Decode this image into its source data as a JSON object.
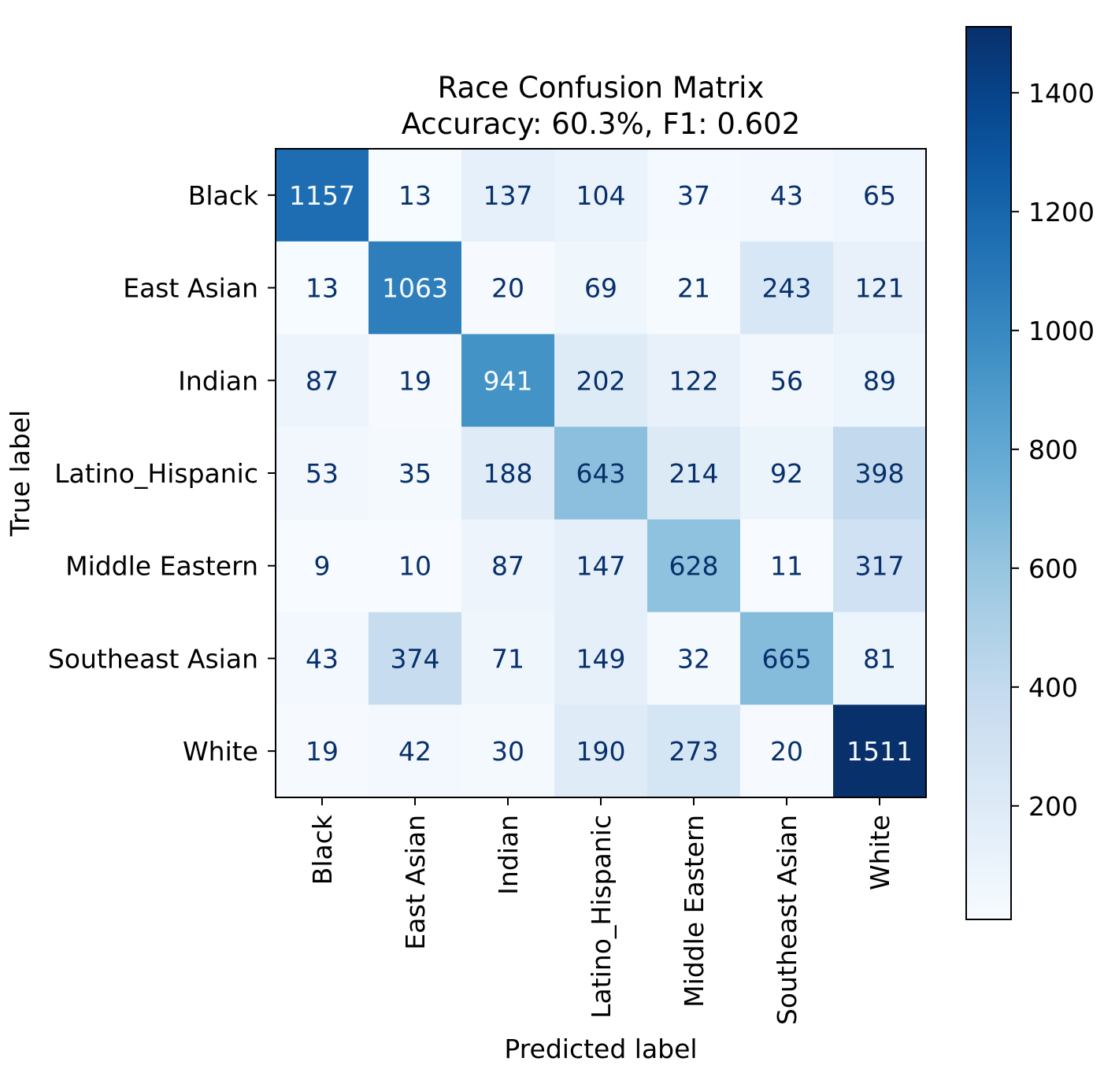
{
  "chart_data": {
    "type": "heatmap",
    "title": "Race Confusion Matrix",
    "subtitle": "Accuracy: 60.3%, F1: 0.602",
    "xlabel": "Predicted label",
    "ylabel": "True label",
    "x_categories": [
      "Black",
      "East Asian",
      "Indian",
      "Latino_Hispanic",
      "Middle Eastern",
      "Southeast Asian",
      "White"
    ],
    "y_categories": [
      "Black",
      "East Asian",
      "Indian",
      "Latino_Hispanic",
      "Middle Eastern",
      "Southeast Asian",
      "White"
    ],
    "values": [
      [
        1157,
        13,
        137,
        104,
        37,
        43,
        65
      ],
      [
        13,
        1063,
        20,
        69,
        21,
        243,
        121
      ],
      [
        87,
        19,
        941,
        202,
        122,
        56,
        89
      ],
      [
        53,
        35,
        188,
        643,
        214,
        92,
        398
      ],
      [
        9,
        10,
        87,
        147,
        628,
        11,
        317
      ],
      [
        43,
        374,
        71,
        149,
        32,
        665,
        81
      ],
      [
        19,
        42,
        30,
        190,
        273,
        20,
        1511
      ]
    ],
    "colormap": "Blues",
    "color_range": [
      9,
      1511
    ],
    "colorbar": {
      "ticks": [
        200,
        400,
        600,
        800,
        1000,
        1200,
        1400
      ]
    },
    "grid": false
  }
}
